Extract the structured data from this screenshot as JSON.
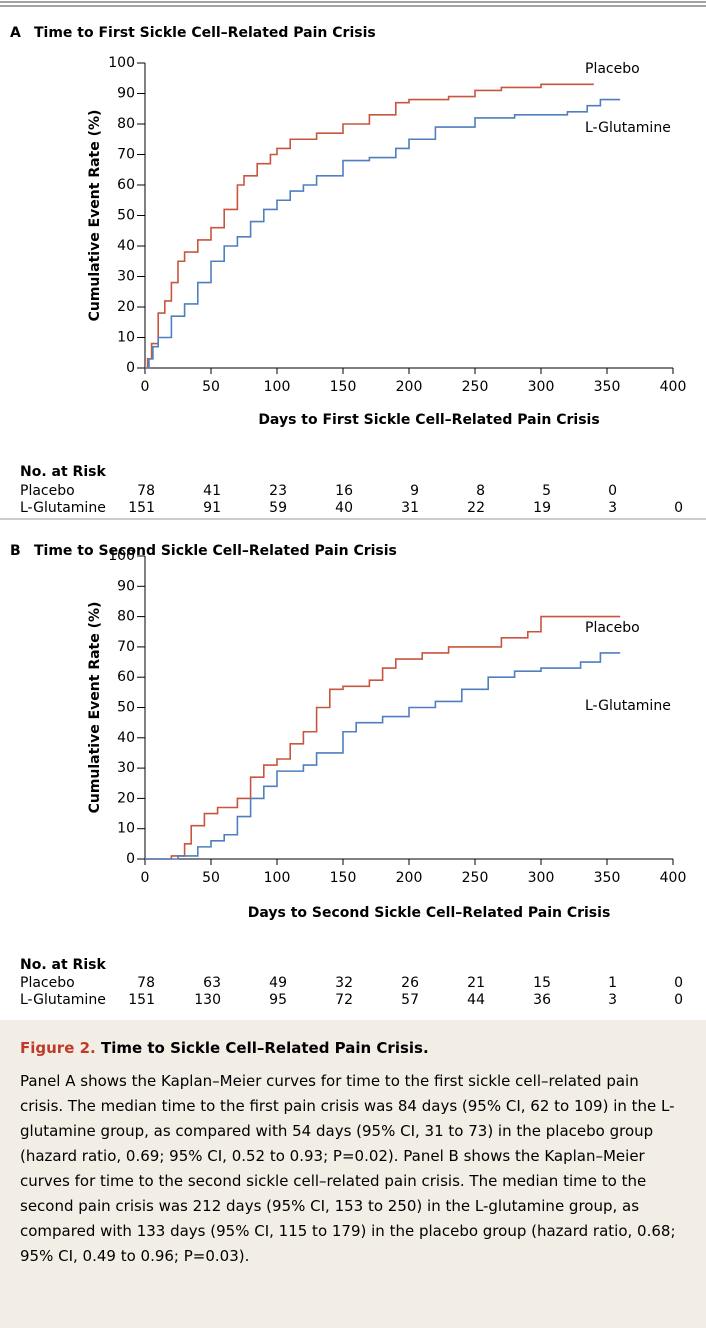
{
  "chart_data": [
    {
      "type": "step",
      "panel": "A",
      "title": "Time to First Sickle Cell–Related Pain Crisis",
      "xlabel": "Days to First Sickle Cell–Related Pain Crisis",
      "ylabel": "Cumulative Event Rate (%)",
      "xlim": [
        0,
        400
      ],
      "ylim": [
        0,
        100
      ],
      "xticks": [
        0,
        50,
        100,
        150,
        200,
        250,
        300,
        350,
        400
      ],
      "yticks": [
        0,
        10,
        20,
        30,
        40,
        50,
        60,
        70,
        80,
        90,
        100
      ],
      "series": [
        {
          "name": "Placebo",
          "color": "#c9553f",
          "x": [
            0,
            2,
            5,
            10,
            15,
            20,
            25,
            30,
            40,
            50,
            60,
            70,
            75,
            85,
            95,
            100,
            110,
            130,
            150,
            170,
            190,
            200,
            230,
            250,
            270,
            300,
            340
          ],
          "values": [
            0,
            3,
            8,
            18,
            22,
            28,
            35,
            38,
            42,
            46,
            52,
            60,
            63,
            67,
            70,
            72,
            75,
            77,
            80,
            83,
            87,
            88,
            89,
            91,
            92,
            93,
            93
          ]
        },
        {
          "name": "L-Glutamine",
          "color": "#4f7fbf",
          "x": [
            0,
            3,
            6,
            10,
            20,
            30,
            40,
            50,
            60,
            70,
            80,
            90,
            100,
            110,
            120,
            130,
            150,
            170,
            190,
            200,
            220,
            250,
            280,
            320,
            335,
            345,
            360
          ],
          "values": [
            0,
            3,
            7,
            10,
            17,
            21,
            28,
            35,
            40,
            43,
            48,
            52,
            55,
            58,
            60,
            63,
            68,
            69,
            72,
            75,
            79,
            82,
            83,
            84,
            86,
            88,
            88
          ]
        }
      ],
      "risk_table": {
        "title": "No. at Risk",
        "rows": [
          {
            "name": "Placebo",
            "values": [
              78,
              41,
              23,
              16,
              9,
              8,
              5,
              0
            ]
          },
          {
            "name": "L-Glutamine",
            "values": [
              151,
              91,
              59,
              40,
              31,
              22,
              19,
              3,
              0
            ]
          }
        ]
      }
    },
    {
      "type": "step",
      "panel": "B",
      "title": "Time to Second Sickle Cell–Related Pain Crisis",
      "xlabel": "Days to Second Sickle Cell–Related Pain Crisis",
      "ylabel": "Cumulative Event Rate (%)",
      "xlim": [
        0,
        400
      ],
      "ylim": [
        0,
        100
      ],
      "xticks": [
        0,
        50,
        100,
        150,
        200,
        250,
        300,
        350,
        400
      ],
      "yticks": [
        0,
        10,
        20,
        30,
        40,
        50,
        60,
        70,
        80,
        90,
        100
      ],
      "series": [
        {
          "name": "Placebo",
          "color": "#c9553f",
          "x": [
            0,
            20,
            30,
            35,
            45,
            55,
            70,
            80,
            90,
            100,
            110,
            120,
            130,
            140,
            150,
            170,
            180,
            190,
            210,
            230,
            270,
            290,
            300,
            340,
            360
          ],
          "values": [
            0,
            1,
            5,
            11,
            15,
            17,
            20,
            27,
            31,
            33,
            38,
            42,
            50,
            56,
            57,
            59,
            63,
            66,
            68,
            70,
            73,
            75,
            80,
            80,
            80
          ]
        },
        {
          "name": "L-Glutamine",
          "color": "#4f7fbf",
          "x": [
            0,
            25,
            40,
            50,
            60,
            70,
            80,
            90,
            100,
            120,
            130,
            150,
            160,
            180,
            200,
            220,
            240,
            260,
            280,
            300,
            330,
            345,
            360
          ],
          "values": [
            0,
            1,
            4,
            6,
            8,
            14,
            20,
            24,
            29,
            31,
            35,
            42,
            45,
            47,
            50,
            52,
            56,
            60,
            62,
            63,
            65,
            68,
            68
          ]
        }
      ],
      "risk_table": {
        "title": "No. at Risk",
        "rows": [
          {
            "name": "Placebo",
            "values": [
              78,
              63,
              49,
              32,
              26,
              21,
              15,
              1,
              0
            ]
          },
          {
            "name": "L-Glutamine",
            "values": [
              151,
              130,
              95,
              72,
              57,
              44,
              36,
              3,
              0
            ]
          }
        ]
      }
    }
  ],
  "caption": {
    "label": "Figure 2.",
    "title": "Time to Sickle Cell–Related Pain Crisis.",
    "text": "Panel A shows the Kaplan–Meier curves for time to the first sickle cell–related pain crisis. The median time to the first pain crisis was 84 days (95% CI, 62 to 109) in the L-glutamine group, as compared with 54 days (95% CI, 31 to 73) in the placebo group (hazard ratio, 0.69; 95% CI, 0.52 to 0.93; P=0.02). Panel B shows the Kaplan–Meier curves for time to the second sickle cell–related pain crisis. The median time to the second pain crisis was 212 days (95% CI, 153 to 250) in the L-glutamine group, as compared with 133 days (95% CI, 115 to 179) in the placebo group (hazard ratio, 0.68; 95% CI, 0.49 to 0.96; P=0.03)."
  }
}
